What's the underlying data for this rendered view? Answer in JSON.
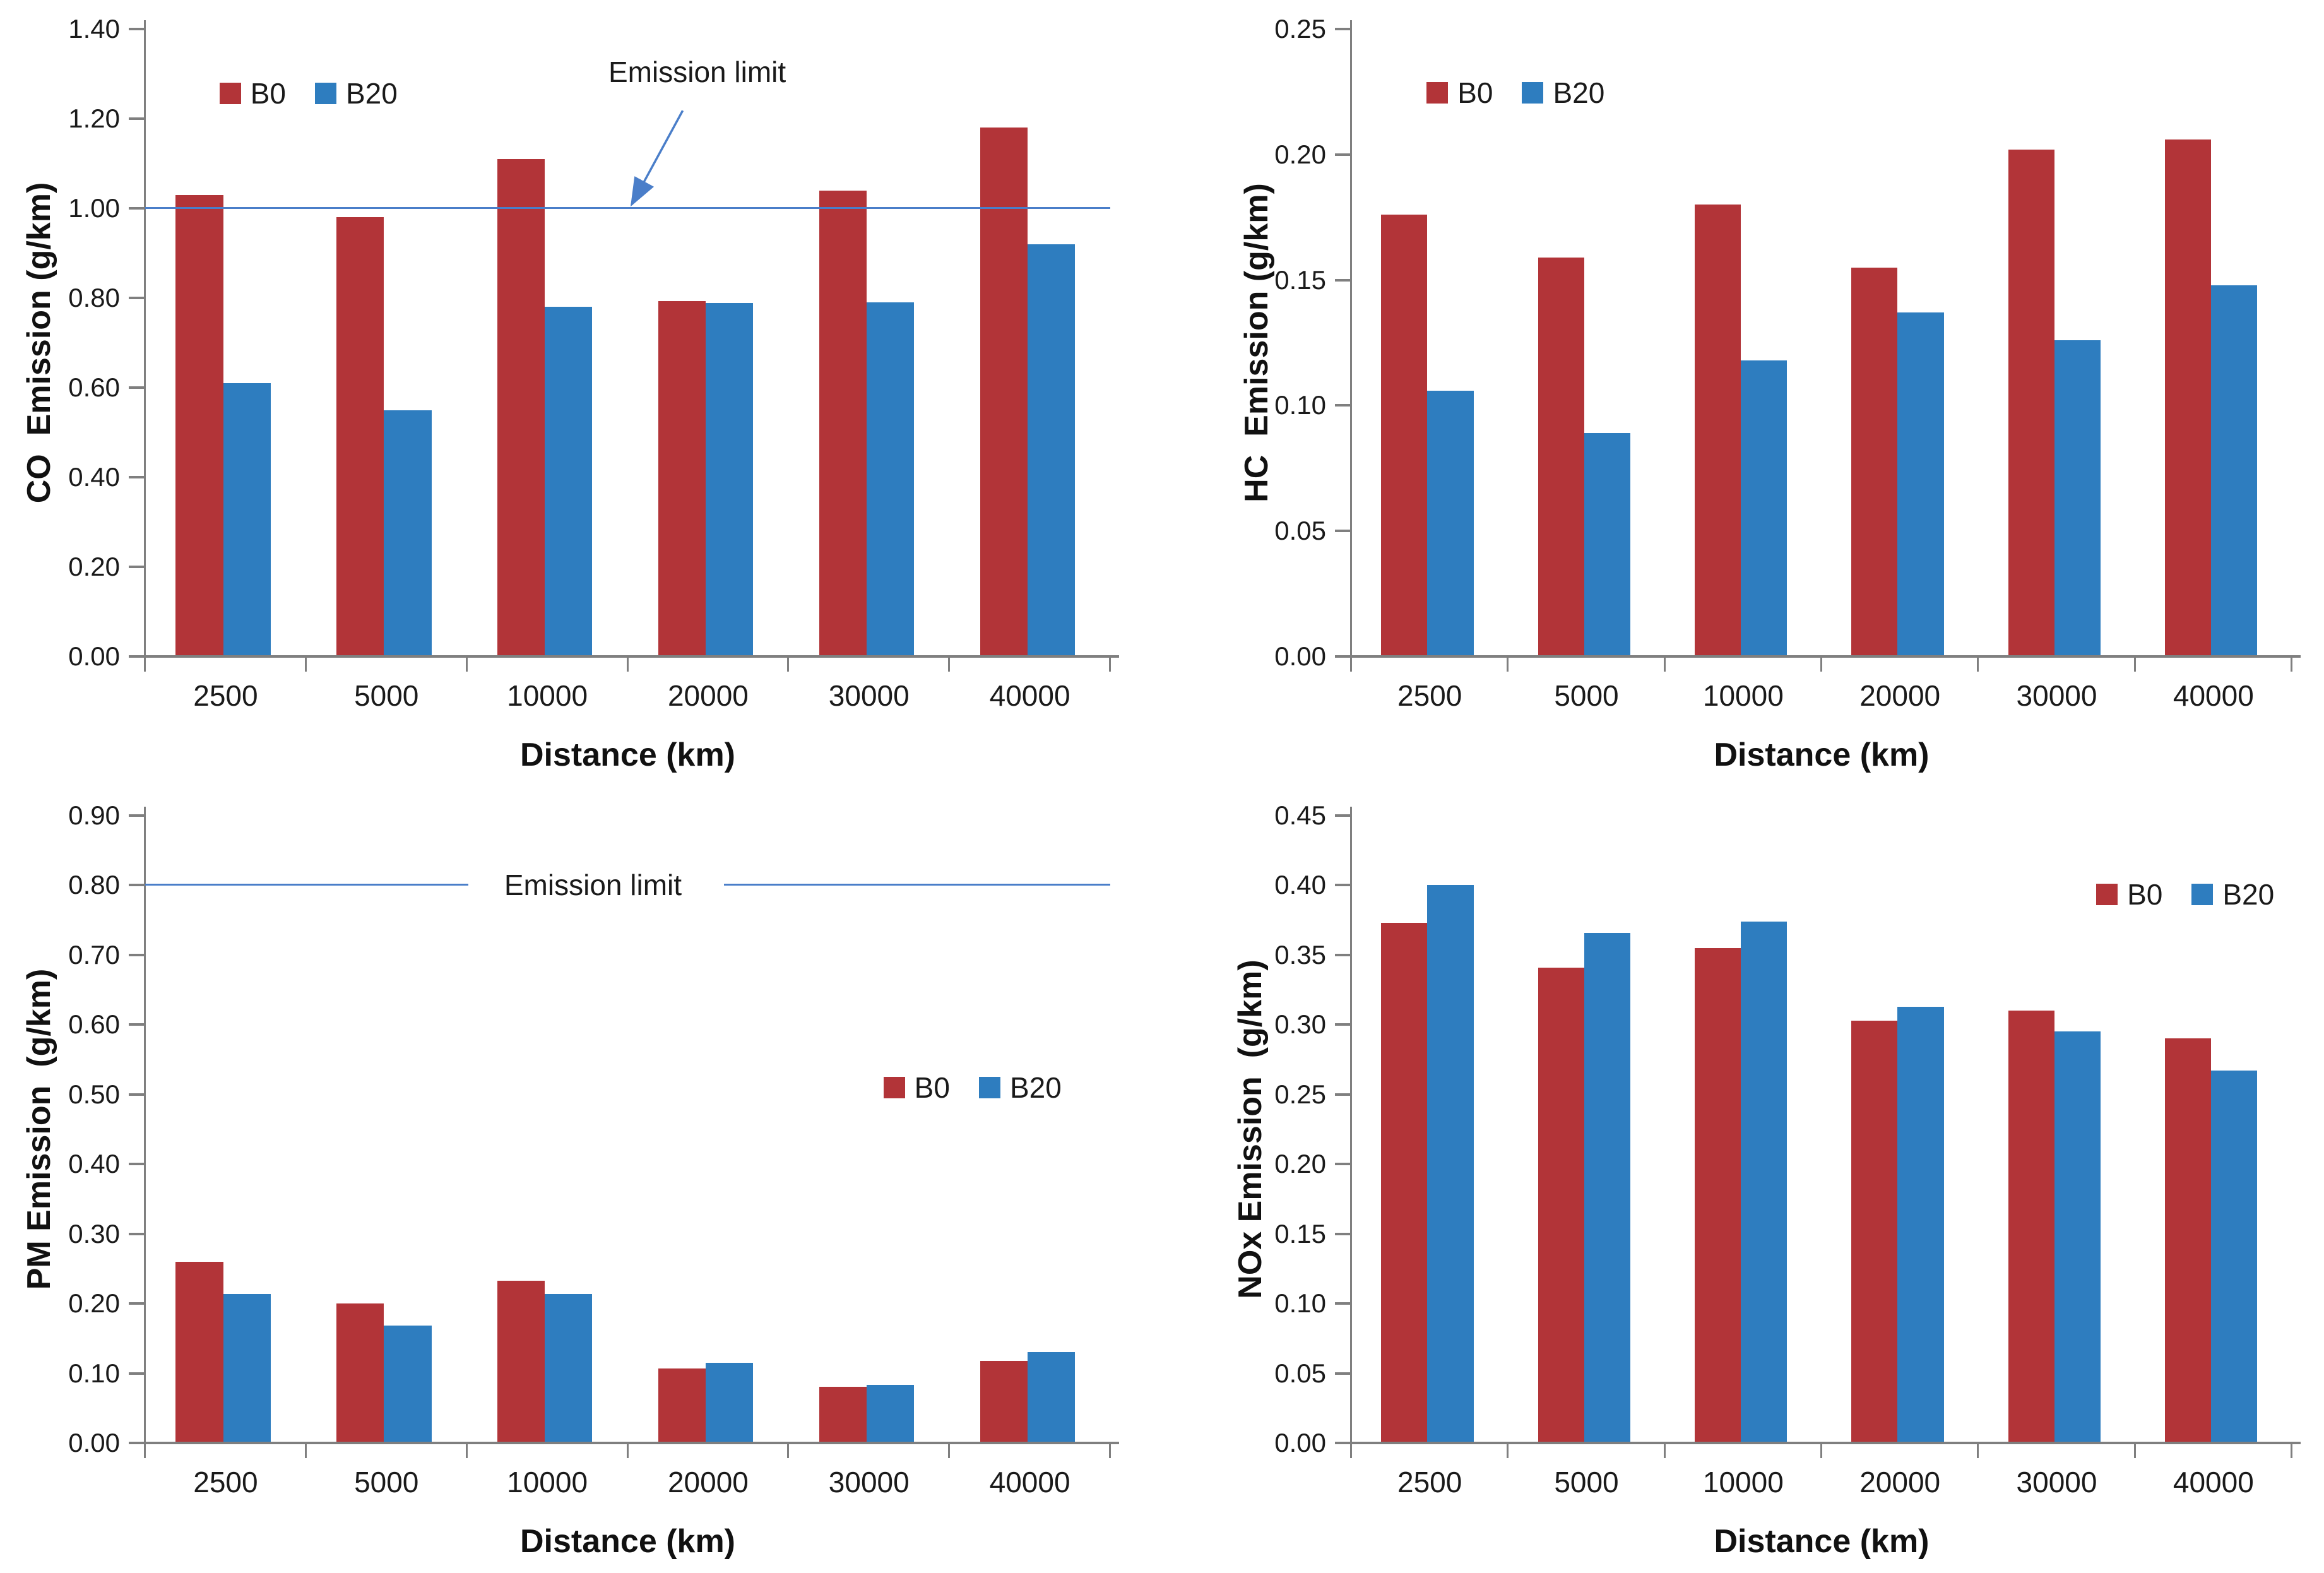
{
  "styles": {
    "background": "#ffffff",
    "series_colors": {
      "B0": "#b23438",
      "B20": "#2e7dbf"
    },
    "axis_color": "#7f7f7f",
    "limit_line_color": "#4a7ec9",
    "text_color": "#1a1a1a"
  },
  "chart_data": [
    {
      "id": "co",
      "type": "bar",
      "title": "",
      "ylabel": "CO  Emission (g/km)",
      "xlabel": "Distance (km)",
      "categories": [
        "2500",
        "5000",
        "10000",
        "20000",
        "30000",
        "40000"
      ],
      "series": [
        {
          "name": "B0",
          "color": "#b23438",
          "values": [
            1.03,
            0.98,
            1.11,
            0.793,
            1.04,
            1.18
          ]
        },
        {
          "name": "B20",
          "color": "#2e7dbf",
          "values": [
            0.61,
            0.55,
            0.78,
            0.789,
            0.79,
            0.92
          ]
        }
      ],
      "ylim": [
        0,
        1.4
      ],
      "yticks": [
        "1.40",
        "1.20",
        "1.00",
        "0.80",
        "0.60",
        "0.40",
        "0.20",
        "0.00"
      ],
      "grid": false,
      "legend_position": "inside-top-left",
      "emission_limit": {
        "value": 1.0,
        "label": "Emission limit",
        "style": "arrow",
        "text_pos": {
          "x": 0.572,
          "y": 0.068
        },
        "arrow": {
          "x1": 0.557,
          "y1": 0.13,
          "x2": 0.504,
          "y2": 0.28
        }
      },
      "layout": {
        "margin_left": 230,
        "margin_right": 82,
        "ylabel_x": 62,
        "legend": {
          "x": 0.077,
          "y": 0.102
        }
      }
    },
    {
      "id": "hc",
      "type": "bar",
      "title": "",
      "ylabel": "HC  Emission (g/km)",
      "xlabel": "Distance (km)",
      "categories": [
        "2500",
        "5000",
        "10000",
        "20000",
        "30000",
        "40000"
      ],
      "series": [
        {
          "name": "B0",
          "color": "#b23438",
          "values": [
            0.176,
            0.159,
            0.18,
            0.155,
            0.202,
            0.206
          ]
        },
        {
          "name": "B20",
          "color": "#2e7dbf",
          "values": [
            0.106,
            0.089,
            0.118,
            0.137,
            0.126,
            0.148
          ]
        }
      ],
      "ylim": [
        0,
        0.25
      ],
      "yticks": [
        "0.25",
        "0.20",
        "0.15",
        "0.10",
        "0.05",
        "0.00"
      ],
      "grid": false,
      "legend_position": "inside-top-left",
      "emission_limit": null,
      "layout": {
        "margin_left": 300,
        "margin_right": 51,
        "ylabel_x": 150,
        "legend": {
          "x": 0.08,
          "y": 0.101
        }
      }
    },
    {
      "id": "pm",
      "type": "bar",
      "title": "",
      "ylabel": "PM Emission  (g/km)",
      "xlabel": "Distance (km)",
      "categories": [
        "2500",
        "5000",
        "10000",
        "20000",
        "30000",
        "40000"
      ],
      "series": [
        {
          "name": "B0",
          "color": "#b23438",
          "values": [
            0.26,
            0.2,
            0.233,
            0.107,
            0.081,
            0.118
          ]
        },
        {
          "name": "B20",
          "color": "#2e7dbf",
          "values": [
            0.214,
            0.168,
            0.214,
            0.115,
            0.083,
            0.13
          ]
        }
      ],
      "ylim": [
        0,
        0.9
      ],
      "yticks": [
        "0.90",
        "0.80",
        "0.70",
        "0.60",
        "0.50",
        "0.40",
        "0.30",
        "0.20",
        "0.10",
        "0.00"
      ],
      "grid": false,
      "legend_position": "inside-middle-right",
      "emission_limit": {
        "value": 0.8,
        "label": "Emission limit",
        "style": "gap",
        "text_pos": {
          "x": 0.464
        },
        "gap": [
          0.335,
          0.6
        ]
      },
      "layout": {
        "margin_left": 230,
        "margin_right": 82,
        "ylabel_x": 62,
        "legend": {
          "x": 0.765,
          "y": 0.433
        }
      }
    },
    {
      "id": "nox",
      "type": "bar",
      "title": "",
      "ylabel": "NOx Emission  (g/km)",
      "xlabel": "Distance (km)",
      "categories": [
        "2500",
        "5000",
        "10000",
        "20000",
        "30000",
        "40000"
      ],
      "series": [
        {
          "name": "B0",
          "color": "#b23438",
          "values": [
            0.373,
            0.341,
            0.355,
            0.303,
            0.31,
            0.29
          ]
        },
        {
          "name": "B20",
          "color": "#2e7dbf",
          "values": [
            0.4,
            0.366,
            0.374,
            0.313,
            0.295,
            0.267
          ]
        }
      ],
      "ylim": [
        0,
        0.45
      ],
      "yticks": [
        "0.45",
        "0.40",
        "0.35",
        "0.30",
        "0.25",
        "0.20",
        "0.15",
        "0.10",
        "0.05",
        "0.00"
      ],
      "grid": false,
      "legend_position": "inside-top-right",
      "emission_limit": null,
      "layout": {
        "margin_left": 300,
        "margin_right": 51,
        "ylabel_x": 140,
        "legend": {
          "x": 0.792,
          "y": 0.125
        }
      }
    }
  ]
}
